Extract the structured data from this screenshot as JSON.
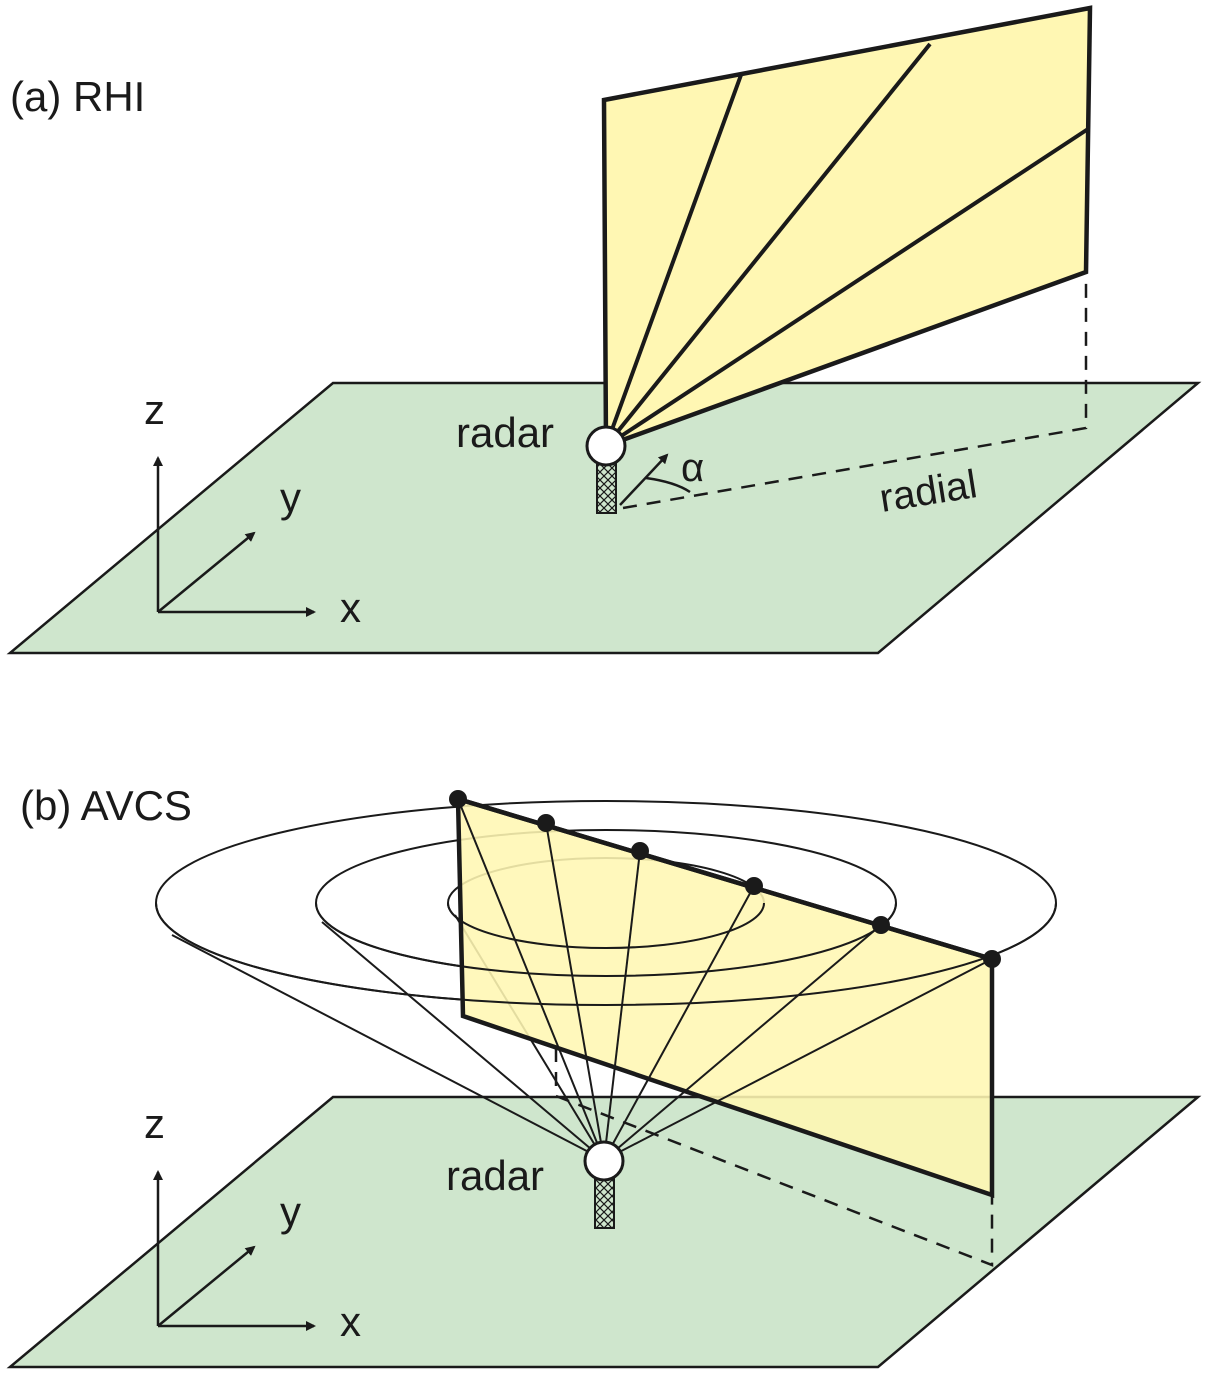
{
  "panel_a": {
    "title": "(a) RHI",
    "radar_label": "radar",
    "angle_label": "α",
    "radial_label": "radial",
    "axes": {
      "x": "x",
      "y": "y",
      "z": "z"
    }
  },
  "panel_b": {
    "title": "(b) AVCS",
    "radar_label": "radar",
    "axes": {
      "x": "x",
      "y": "y",
      "z": "z"
    }
  },
  "colors": {
    "ground": "#cfe6cd",
    "scan_plane": "#fff7b3",
    "line": "#1a1a1a",
    "radar_fill": "#ffffff"
  }
}
